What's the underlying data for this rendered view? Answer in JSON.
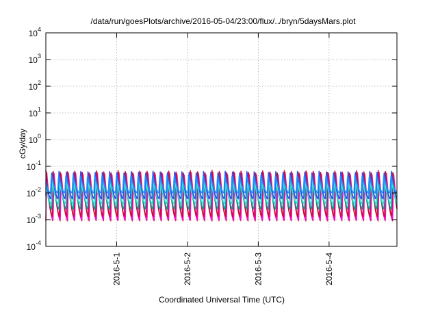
{
  "chart_data": {
    "type": "line",
    "title": "/data/run/goesPlots/archive/2016-05-04/23:00/flux/../bryn/5daysMars.plot",
    "xlabel": "Coordinated Universal Time (UTC)",
    "ylabel": "cGy/day",
    "yscale": "log",
    "ylim": [
      0.0001,
      10000
    ],
    "xlim": [
      "2016-04-30T00:00",
      "2016-05-04T23:00"
    ],
    "grid": true,
    "legend": "none",
    "y_ticks": [
      {
        "exp": "-4",
        "value": 0.0001
      },
      {
        "exp": "-3",
        "value": 0.001
      },
      {
        "exp": "-2",
        "value": 0.01
      },
      {
        "exp": "-1",
        "value": 0.1
      },
      {
        "exp": "0",
        "value": 1
      },
      {
        "exp": "1",
        "value": 10
      },
      {
        "exp": "2",
        "value": 100
      },
      {
        "exp": "3",
        "value": 1000
      },
      {
        "exp": "4",
        "value": 10000
      }
    ],
    "y_tick_base": "10",
    "x_ticks": [
      {
        "label": "2016-5-1",
        "value": "2016-05-01T00:00"
      },
      {
        "label": "2016-5-2",
        "value": "2016-05-02T00:00"
      },
      {
        "label": "2016-5-3",
        "value": "2016-05-03T00:00"
      },
      {
        "label": "2016-5-4",
        "value": "2016-05-04T00:00"
      }
    ],
    "cycles_per_day": 9.8,
    "series": [
      {
        "color": "#e0218a",
        "peak": 0.06,
        "trough": 0.0009
      },
      {
        "color": "#ff00ff",
        "peak": 0.055,
        "trough": 0.0011
      },
      {
        "color": "#c8102e",
        "peak": 0.07,
        "trough": 0.0013
      },
      {
        "color": "#00a0a0",
        "peak": 0.03,
        "trough": 0.0025
      },
      {
        "color": "#40e0d0",
        "peak": 0.025,
        "trough": 0.004
      },
      {
        "color": "#3050f0",
        "peak": 0.065,
        "trough": 0.006
      },
      {
        "color": "#1e90ff",
        "peak": 0.045,
        "trough": 0.01
      }
    ]
  }
}
